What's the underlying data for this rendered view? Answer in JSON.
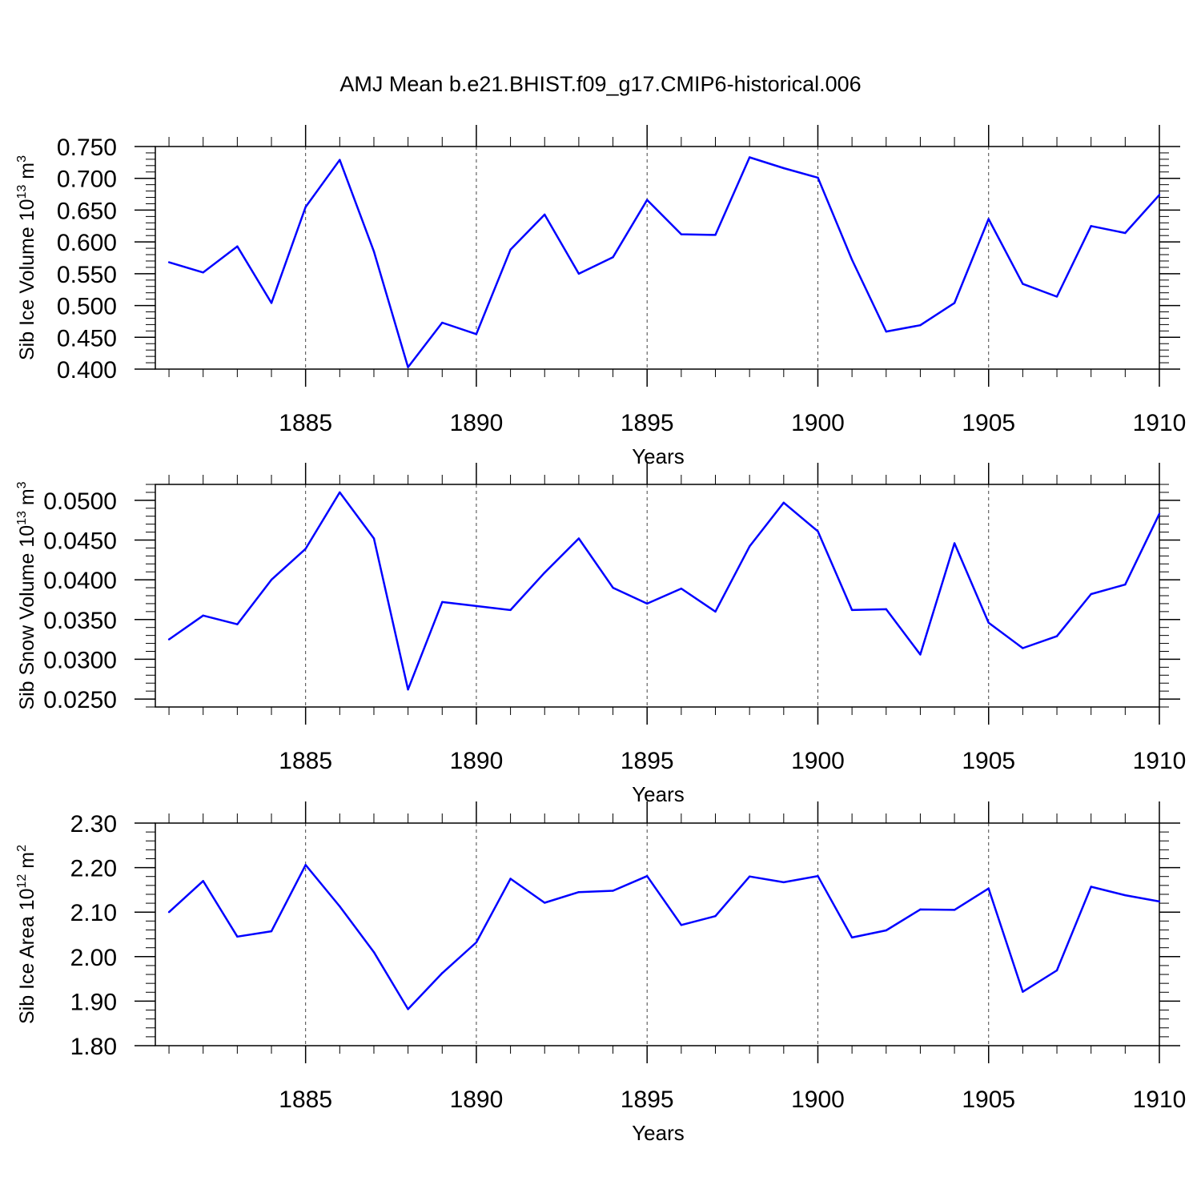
{
  "title": "AMJ Mean b.e21.BHIST.f09_g17.CMIP6-historical.006",
  "colors": {
    "line": "#0000ff",
    "axis": "#000000",
    "grid": "#444444"
  },
  "chart_data": [
    {
      "type": "line",
      "xlabel": "Years",
      "ylabel": {
        "text": "Sib Ice Volume 10",
        "sup": "13",
        "unit": " m",
        "unit_sup": "3"
      },
      "xlim": [
        1880.6,
        1910
      ],
      "xticks": [
        "1885",
        "1890",
        "1895",
        "1900",
        "1905",
        "1910"
      ],
      "ylim": [
        0.4,
        0.75
      ],
      "yticks": [
        "0.400",
        "0.450",
        "0.500",
        "0.550",
        "0.600",
        "0.650",
        "0.700",
        "0.750"
      ],
      "series": [
        {
          "x": [
            1881,
            1882,
            1883,
            1884,
            1885,
            1886,
            1887,
            1888,
            1889,
            1890,
            1891,
            1892,
            1893,
            1894,
            1895,
            1896,
            1897,
            1898,
            1899,
            1900,
            1901,
            1902,
            1903,
            1904,
            1905,
            1906,
            1907,
            1908,
            1909,
            1910
          ],
          "values": [
            0.568,
            0.552,
            0.593,
            0.504,
            0.655,
            0.729,
            0.585,
            0.403,
            0.473,
            0.455,
            0.588,
            0.643,
            0.55,
            0.576,
            0.666,
            0.612,
            0.611,
            0.733,
            0.716,
            0.701,
            0.572,
            0.459,
            0.469,
            0.504,
            0.636,
            0.534,
            0.514,
            0.625,
            0.614,
            0.674
          ]
        }
      ]
    },
    {
      "type": "line",
      "xlabel": "Years",
      "ylabel": {
        "text": "Sib Snow Volume 10",
        "sup": "13",
        "unit": " m",
        "unit_sup": "3"
      },
      "xlim": [
        1880.6,
        1910
      ],
      "xticks": [
        "1885",
        "1890",
        "1895",
        "1900",
        "1905",
        "1910"
      ],
      "ylim": [
        0.024,
        0.052
      ],
      "yticks": [
        "0.0250",
        "0.0300",
        "0.0350",
        "0.0400",
        "0.0450",
        "0.0500"
      ],
      "series": [
        {
          "x": [
            1881,
            1882,
            1883,
            1884,
            1885,
            1886,
            1887,
            1888,
            1889,
            1890,
            1891,
            1892,
            1893,
            1894,
            1895,
            1896,
            1897,
            1898,
            1899,
            1900,
            1901,
            1902,
            1903,
            1904,
            1905,
            1906,
            1907,
            1908,
            1909,
            1910
          ],
          "values": [
            0.0325,
            0.0355,
            0.0344,
            0.04,
            0.0439,
            0.051,
            0.0452,
            0.0262,
            0.0372,
            0.0367,
            0.0362,
            0.0409,
            0.0452,
            0.039,
            0.037,
            0.0389,
            0.036,
            0.0442,
            0.0497,
            0.0461,
            0.0362,
            0.0363,
            0.0306,
            0.0446,
            0.0346,
            0.0314,
            0.0329,
            0.0382,
            0.0394,
            0.0483
          ]
        }
      ]
    },
    {
      "type": "line",
      "xlabel": "Years",
      "ylabel": {
        "text": "Sib Ice Area 10",
        "sup": "12",
        "unit": " m",
        "unit_sup": "2"
      },
      "xlim": [
        1880.6,
        1910
      ],
      "xticks": [
        "1885",
        "1890",
        "1895",
        "1900",
        "1905",
        "1910"
      ],
      "ylim": [
        1.8,
        2.3
      ],
      "yticks": [
        "1.80",
        "1.90",
        "2.00",
        "2.10",
        "2.20",
        "2.30"
      ],
      "series": [
        {
          "x": [
            1881,
            1882,
            1883,
            1884,
            1885,
            1886,
            1887,
            1888,
            1889,
            1890,
            1891,
            1892,
            1893,
            1894,
            1895,
            1896,
            1897,
            1898,
            1899,
            1900,
            1901,
            1902,
            1903,
            1904,
            1905,
            1906,
            1907,
            1908,
            1909,
            1910
          ],
          "values": [
            2.1,
            2.17,
            2.045,
            2.057,
            2.206,
            2.113,
            2.01,
            1.882,
            1.963,
            2.032,
            2.175,
            2.121,
            2.145,
            2.148,
            2.181,
            2.071,
            2.091,
            2.18,
            2.167,
            2.181,
            2.043,
            2.059,
            2.106,
            2.105,
            2.153,
            1.921,
            1.969,
            2.157,
            2.138,
            2.124
          ]
        }
      ]
    }
  ]
}
